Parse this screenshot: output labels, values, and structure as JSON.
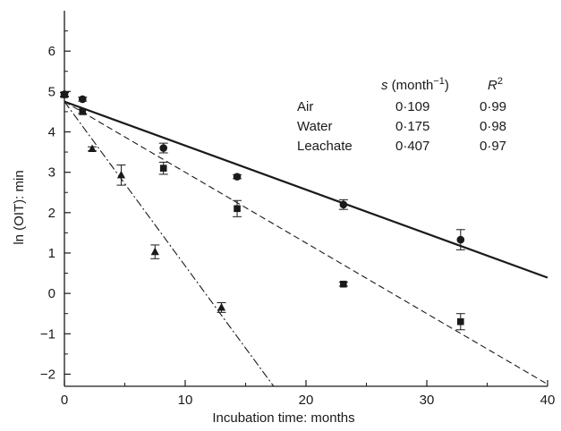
{
  "chart_data": {
    "type": "scatter",
    "title": "",
    "xlabel": "Incubation time: months",
    "ylabel": "ln (OIT): min",
    "xlim": [
      0,
      40
    ],
    "ylim": [
      -2.3,
      7
    ],
    "xticks": [
      0,
      10,
      20,
      30,
      40
    ],
    "yticks": [
      -2,
      -1,
      0,
      1,
      2,
      3,
      4,
      5,
      6
    ],
    "grid": false,
    "series": [
      {
        "name": "Air",
        "marker": "circle",
        "line_style": "solid",
        "s": "0·109",
        "r2": "0·99",
        "fit": {
          "intercept": 4.75,
          "slope": -0.109
        },
        "points": [
          {
            "x": 0,
            "y": 4.93,
            "err": 0.05
          },
          {
            "x": 1.5,
            "y": 4.81,
            "err": 0.05
          },
          {
            "x": 8.2,
            "y": 3.6,
            "err": 0.12
          },
          {
            "x": 14.3,
            "y": 2.89,
            "err": 0.05
          },
          {
            "x": 23.1,
            "y": 2.2,
            "err": 0.12
          },
          {
            "x": 32.8,
            "y": 1.33,
            "err": 0.25
          }
        ]
      },
      {
        "name": "Water",
        "marker": "square",
        "line_style": "dashed",
        "s": "0·175",
        "r2": "0·98",
        "fit": {
          "intercept": 4.75,
          "slope": -0.175
        },
        "points": [
          {
            "x": 0,
            "y": 4.92,
            "err": 0.05
          },
          {
            "x": 1.5,
            "y": 4.5,
            "err": 0.05
          },
          {
            "x": 8.2,
            "y": 3.1,
            "err": 0.15
          },
          {
            "x": 14.3,
            "y": 2.1,
            "err": 0.2
          },
          {
            "x": 23.1,
            "y": 0.23,
            "err": 0.05
          },
          {
            "x": 32.8,
            "y": -0.7,
            "err": 0.2
          }
        ]
      },
      {
        "name": "Leachate",
        "marker": "triangle",
        "line_style": "dashdot",
        "s": "0·407",
        "r2": "0·97",
        "fit": {
          "intercept": 4.75,
          "slope": -0.407
        },
        "points": [
          {
            "x": 0,
            "y": 4.93,
            "err": 0.05
          },
          {
            "x": 2.3,
            "y": 3.58,
            "err": 0.05
          },
          {
            "x": 4.7,
            "y": 2.93,
            "err": 0.25
          },
          {
            "x": 7.5,
            "y": 1.03,
            "err": 0.17
          },
          {
            "x": 13.0,
            "y": -0.35,
            "err": 0.12
          }
        ]
      }
    ],
    "legend": {
      "placement": "top-right",
      "header_s": "s",
      "header_s_unit": " (month",
      "header_s_exp": "−1",
      "header_s_close": ")",
      "header_r": "R",
      "header_r_exp": "2"
    }
  }
}
